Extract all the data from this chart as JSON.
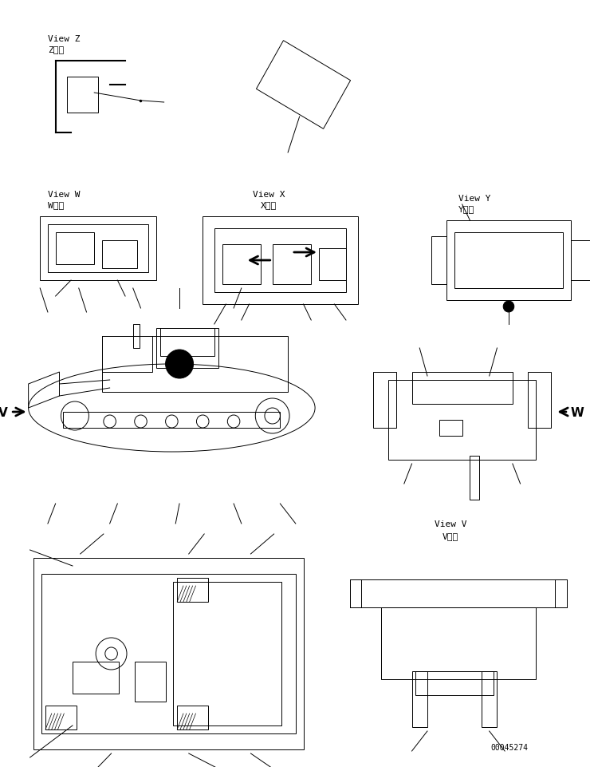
{
  "bg_color": "#ffffff",
  "line_color": "#000000",
  "fig_width": 7.4,
  "fig_height": 9.62,
  "dpi": 100,
  "part_number": "00045274",
  "views": {
    "top_view_label": "",
    "V_label": "V 視\nView V",
    "W_label": "W 視\nView W",
    "X_label": "X 視\nView X",
    "Y_label": "Y 視\nView Y",
    "Z_label": "Z 視\nView Z"
  }
}
